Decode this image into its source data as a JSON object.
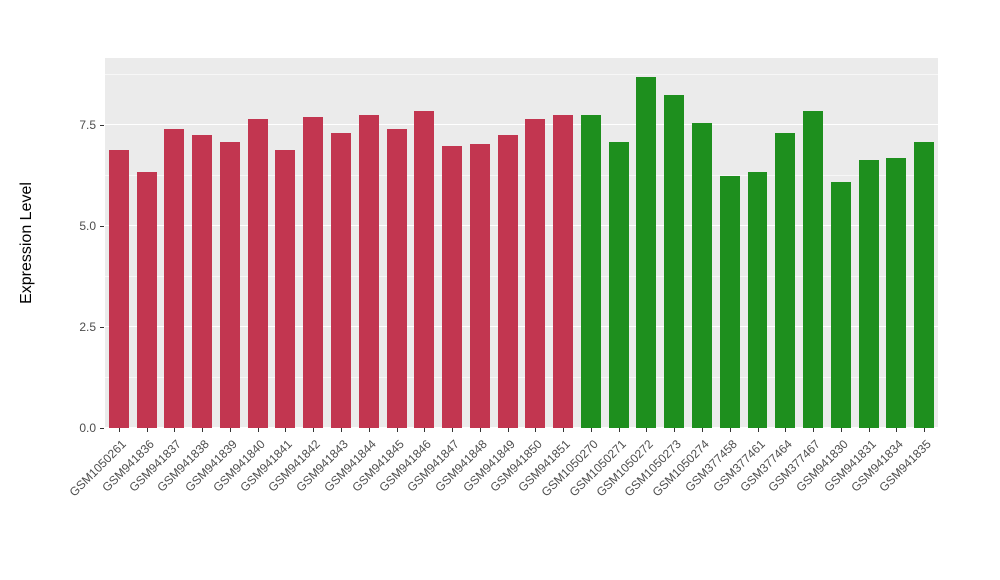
{
  "figure": {
    "background": "#FFFFFF",
    "panel_background": "#EBEBEB",
    "grid_color": "#FFFFFF",
    "tick_color": "#333333",
    "tick_label_color": "#4D4D4D",
    "axis_title_color": "#000000"
  },
  "chart_data": {
    "type": "bar",
    "title": "",
    "xlabel": "",
    "ylabel": "Expression Level",
    "ylim": [
      0,
      9.17
    ],
    "yticks": [
      0.0,
      2.5,
      5.0,
      7.5
    ],
    "ytick_labels": [
      "0.0",
      "2.5",
      "5.0",
      "7.5"
    ],
    "yticks_minor": [
      1.25,
      3.75,
      6.25,
      8.75
    ],
    "grid": true,
    "legend": "none",
    "categories": [
      "GSM1050261",
      "GSM941836",
      "GSM941837",
      "GSM941838",
      "GSM941839",
      "GSM941840",
      "GSM941841",
      "GSM941842",
      "GSM941843",
      "GSM941844",
      "GSM941845",
      "GSM941846",
      "GSM941847",
      "GSM941848",
      "GSM941849",
      "GSM941850",
      "GSM941851",
      "GSM1050270",
      "GSM1050271",
      "GSM1050272",
      "GSM1050273",
      "GSM1050274",
      "GSM377458",
      "GSM377461",
      "GSM377464",
      "GSM377467",
      "GSM941830",
      "GSM941831",
      "GSM941834",
      "GSM941835"
    ],
    "values": [
      6.9,
      6.35,
      7.4,
      7.25,
      7.1,
      7.65,
      6.9,
      7.7,
      7.3,
      7.75,
      7.4,
      7.85,
      7.0,
      7.05,
      7.25,
      7.65,
      7.75,
      7.75,
      7.1,
      8.7,
      8.25,
      7.55,
      6.25,
      6.35,
      7.3,
      7.85,
      6.1,
      6.65,
      6.7,
      7.1
    ],
    "groups": [
      "red",
      "red",
      "red",
      "red",
      "red",
      "red",
      "red",
      "red",
      "red",
      "red",
      "red",
      "red",
      "red",
      "red",
      "red",
      "red",
      "red",
      "green",
      "green",
      "green",
      "green",
      "green",
      "green",
      "green",
      "green",
      "green",
      "green",
      "green",
      "green",
      "green"
    ],
    "group_colors": {
      "red": "#C23650",
      "green": "#1E8F1E"
    }
  }
}
